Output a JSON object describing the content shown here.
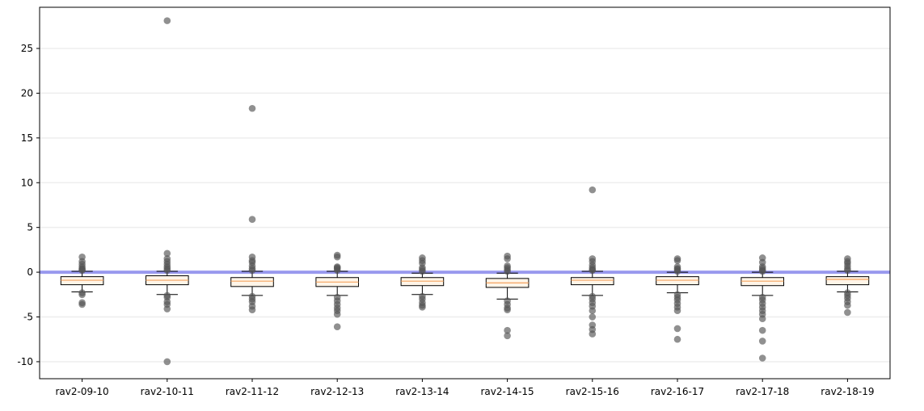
{
  "chart_data": {
    "type": "box",
    "title": "",
    "xlabel": "",
    "ylabel": "",
    "ylim": [
      -11.9,
      29.6
    ],
    "yticks": [
      -10,
      -5,
      0,
      5,
      10,
      15,
      20,
      25
    ],
    "grid": "horizontal",
    "reference_line": {
      "y": 0,
      "color": "#9999ee"
    },
    "colors": {
      "median": "#f4a460",
      "box_fill": "#fff5e8",
      "outlier": "#555555",
      "grid": "#eeeeee"
    },
    "categories": [
      "rav2-09-10",
      "rav2-10-11",
      "rav2-11-12",
      "rav2-12-13",
      "rav2-13-14",
      "rav2-14-15",
      "rav2-15-16",
      "rav2-16-17",
      "rav2-17-18",
      "rav2-18-19"
    ],
    "boxes": [
      {
        "q1": -1.4,
        "median": -0.9,
        "q3": -0.5,
        "whisker_low": -2.2,
        "whisker_high": 0.1,
        "outliers": [
          1.7,
          1.2,
          0.9,
          0.6,
          0.4,
          0.3,
          0.2,
          -2.3,
          -2.5,
          -3.4,
          -3.6
        ]
      },
      {
        "q1": -1.4,
        "median": -0.9,
        "q3": -0.4,
        "whisker_low": -2.5,
        "whisker_high": 0.1,
        "outliers": [
          28.1,
          2.1,
          1.5,
          1.2,
          0.9,
          0.6,
          0.4,
          0.2,
          -2.6,
          -2.8,
          -3.3,
          -3.6,
          -4.1,
          -10.0
        ]
      },
      {
        "q1": -1.6,
        "median": -1.0,
        "q3": -0.6,
        "whisker_low": -2.6,
        "whisker_high": 0.1,
        "outliers": [
          18.3,
          5.9,
          1.7,
          1.3,
          1.1,
          0.7,
          0.4,
          0.2,
          -2.7,
          -3.0,
          -3.3,
          -3.8,
          -4.2
        ]
      },
      {
        "q1": -1.6,
        "median": -1.1,
        "q3": -0.6,
        "whisker_low": -2.6,
        "whisker_high": 0.1,
        "outliers": [
          1.9,
          1.7,
          0.6,
          0.5,
          0.4,
          0.2,
          -2.8,
          -3.2,
          -3.6,
          -4.0,
          -4.3,
          -4.7,
          -6.1
        ]
      },
      {
        "q1": -1.5,
        "median": -1.0,
        "q3": -0.6,
        "whisker_low": -2.5,
        "whisker_high": -0.1,
        "outliers": [
          1.6,
          1.3,
          1.0,
          0.5,
          0.3,
          0.1,
          -2.7,
          -3.0,
          -3.4,
          -3.7,
          -3.9
        ]
      },
      {
        "q1": -1.7,
        "median": -1.2,
        "q3": -0.7,
        "whisker_low": -3.0,
        "whisker_high": -0.1,
        "outliers": [
          1.8,
          1.5,
          0.7,
          0.5,
          0.3,
          0.1,
          -3.2,
          -3.6,
          -4.0,
          -4.2,
          -6.5,
          -7.1
        ]
      },
      {
        "q1": -1.4,
        "median": -0.9,
        "q3": -0.6,
        "whisker_low": -2.6,
        "whisker_high": 0.1,
        "outliers": [
          9.2,
          1.5,
          1.2,
          0.8,
          0.5,
          0.3,
          0.2,
          -2.7,
          -3.0,
          -3.4,
          -3.8,
          -4.3,
          -5.0,
          -5.9,
          -6.4,
          -6.9
        ]
      },
      {
        "q1": -1.4,
        "median": -0.9,
        "q3": -0.5,
        "whisker_low": -2.3,
        "whisker_high": 0.0,
        "outliers": [
          1.5,
          1.3,
          0.6,
          0.4,
          0.3,
          0.1,
          -2.5,
          -2.8,
          -3.1,
          -3.5,
          -3.9,
          -4.3,
          -6.3,
          -7.5
        ]
      },
      {
        "q1": -1.5,
        "median": -1.0,
        "q3": -0.6,
        "whisker_low": -2.6,
        "whisker_high": 0.0,
        "outliers": [
          1.6,
          1.1,
          0.6,
          0.4,
          0.2,
          0.1,
          -2.8,
          -3.1,
          -3.5,
          -3.9,
          -4.3,
          -4.7,
          -5.2,
          -6.5,
          -7.7,
          -9.6
        ]
      },
      {
        "q1": -1.4,
        "median": -0.8,
        "q3": -0.5,
        "whisker_low": -2.2,
        "whisker_high": 0.1,
        "outliers": [
          1.5,
          1.2,
          1.0,
          0.7,
          0.4,
          0.2,
          -2.3,
          -2.6,
          -2.9,
          -3.3,
          -3.7,
          -4.5
        ]
      }
    ]
  }
}
